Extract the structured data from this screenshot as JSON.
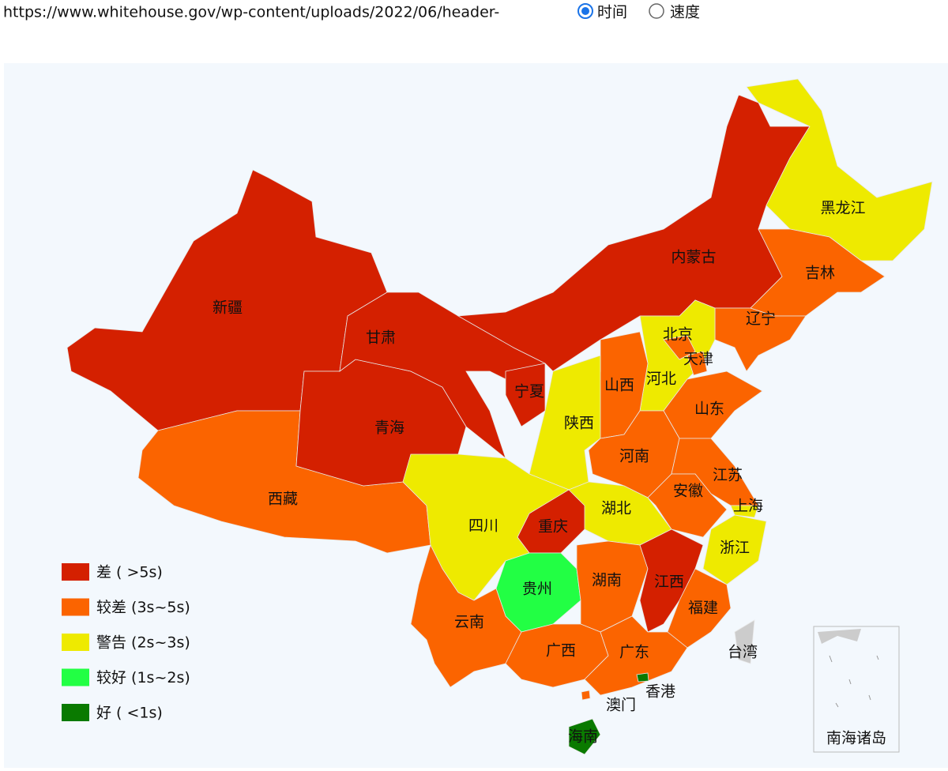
{
  "header": {
    "url": "https://www.whitehouse.gov/wp-content/uploads/2022/06/header-",
    "options": [
      "时间",
      "速度"
    ]
  },
  "legend": [
    {
      "label": "差 ( >5s)",
      "color": "#d42000"
    },
    {
      "label": "较差 (3s~5s)",
      "color": "#fb6400"
    },
    {
      "label": "警告 (2s~3s)",
      "color": "#eeea00"
    },
    {
      "label": "较好 (1s~2s)",
      "color": "#22ff44"
    },
    {
      "label": "好 ( <1s)",
      "color": "#0a7a00"
    }
  ],
  "regions": [
    {
      "name": "新疆",
      "level": 0
    },
    {
      "name": "西藏",
      "level": 1
    },
    {
      "name": "青海",
      "level": 0
    },
    {
      "name": "甘肃",
      "level": 0
    },
    {
      "name": "宁夏",
      "level": 0
    },
    {
      "name": "内蒙古",
      "level": 0
    },
    {
      "name": "黑龙江",
      "level": 2
    },
    {
      "name": "吉林",
      "level": 1
    },
    {
      "name": "辽宁",
      "level": 1
    },
    {
      "name": "河北",
      "level": 2
    },
    {
      "name": "北京",
      "level": 1
    },
    {
      "name": "天津",
      "level": 1
    },
    {
      "name": "山西",
      "level": 1
    },
    {
      "name": "陕西",
      "level": 2
    },
    {
      "name": "山东",
      "level": 1
    },
    {
      "name": "河南",
      "level": 1
    },
    {
      "name": "江苏",
      "level": 1
    },
    {
      "name": "上海",
      "level": 2
    },
    {
      "name": "安徽",
      "level": 1
    },
    {
      "name": "浙江",
      "level": 2
    },
    {
      "name": "湖北",
      "level": 2
    },
    {
      "name": "重庆",
      "level": 0
    },
    {
      "name": "四川",
      "level": 2
    },
    {
      "name": "贵州",
      "level": 3
    },
    {
      "name": "湖南",
      "level": 1
    },
    {
      "name": "江西",
      "level": 0
    },
    {
      "name": "福建",
      "level": 1
    },
    {
      "name": "云南",
      "level": 1
    },
    {
      "name": "广西",
      "level": 1
    },
    {
      "name": "广东",
      "level": 1
    },
    {
      "name": "香港",
      "level": 4
    },
    {
      "name": "澳门",
      "level": 1
    },
    {
      "name": "海南",
      "level": 4
    },
    {
      "name": "台湾",
      "level": null
    }
  ],
  "inset_label": "南海诸岛"
}
